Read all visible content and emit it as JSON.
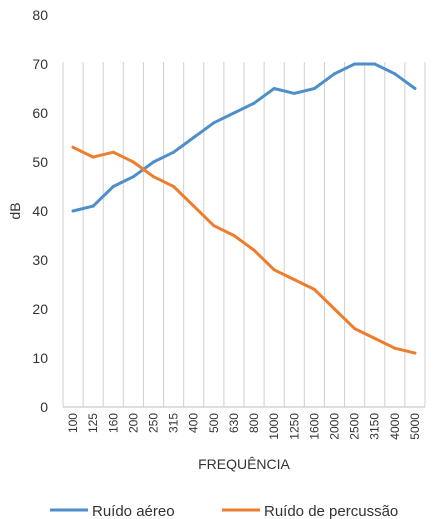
{
  "chart_data": {
    "type": "line",
    "title": "",
    "xlabel": "FREQUÊNCIA",
    "ylabel": "dB",
    "ylim": [
      0,
      80
    ],
    "y_ticks": [
      "0",
      "10",
      "20",
      "30",
      "40",
      "50",
      "60",
      "70",
      "80"
    ],
    "categories": [
      "100",
      "125",
      "160",
      "200",
      "250",
      "315",
      "400",
      "500",
      "630",
      "800",
      "1000",
      "1250",
      "1600",
      "2000",
      "2500",
      "3150",
      "4000",
      "5000"
    ],
    "grid": "vertical",
    "legend_position": "bottom",
    "series": [
      {
        "name": "Ruído aéreo",
        "color": "#4e8fc9",
        "values": [
          40,
          41,
          45,
          47,
          50,
          52,
          55,
          58,
          60,
          62,
          65,
          64,
          65,
          68,
          70,
          70,
          68,
          65
        ]
      },
      {
        "name": "Ruído de percussão",
        "color": "#ee7d2f",
        "values": [
          53,
          51,
          52,
          50,
          47,
          45,
          41,
          37,
          35,
          32,
          28,
          26,
          24,
          20,
          16,
          14,
          12,
          11
        ]
      }
    ]
  }
}
